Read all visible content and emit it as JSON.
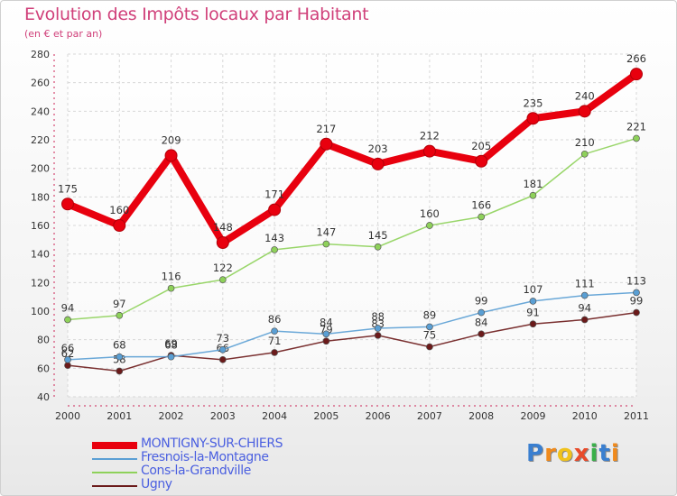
{
  "chart_data": {
    "type": "line",
    "title": "Evolution des Impôts locaux par Habitant",
    "subtitle": "(en € et par an)",
    "x": [
      "2000",
      "2001",
      "2002",
      "2003",
      "2004",
      "2005",
      "2006",
      "2007",
      "2008",
      "2009",
      "2010",
      "2011"
    ],
    "y_ticks": [
      40,
      60,
      80,
      100,
      120,
      140,
      160,
      180,
      200,
      220,
      240,
      260,
      280
    ],
    "ylim": [
      40,
      280
    ],
    "grid": true,
    "legend_position": "bottom-left",
    "series": [
      {
        "name": "MONTIGNY-SUR-CHIERS",
        "color": "#e8000e",
        "values": [
          175,
          160,
          209,
          148,
          171,
          217,
          203,
          212,
          205,
          235,
          240,
          266
        ]
      },
      {
        "name": "Fresnois-la-Montagne",
        "color": "#5a9fd4",
        "values": [
          66,
          68,
          68,
          73,
          86,
          84,
          88,
          89,
          99,
          107,
          111,
          113
        ]
      },
      {
        "name": "Cons-la-Grandville",
        "color": "#8ed15a",
        "values": [
          94,
          97,
          116,
          122,
          143,
          147,
          145,
          160,
          166,
          181,
          210,
          221
        ]
      },
      {
        "name": "Ugny",
        "color": "#6b1a1a",
        "values": [
          62,
          58,
          69,
          66,
          71,
          79,
          83,
          75,
          84,
          91,
          94,
          99
        ]
      }
    ]
  },
  "logo": {
    "text": "Proxiti",
    "letters": [
      "P",
      "r",
      "o",
      "x",
      "i",
      "t",
      "i"
    ],
    "colors": [
      "#3a7fd0",
      "#f08a1c",
      "#f0c21c",
      "#e84a2a",
      "#3ab04a",
      "#3a7fd0",
      "#f08a1c"
    ]
  }
}
